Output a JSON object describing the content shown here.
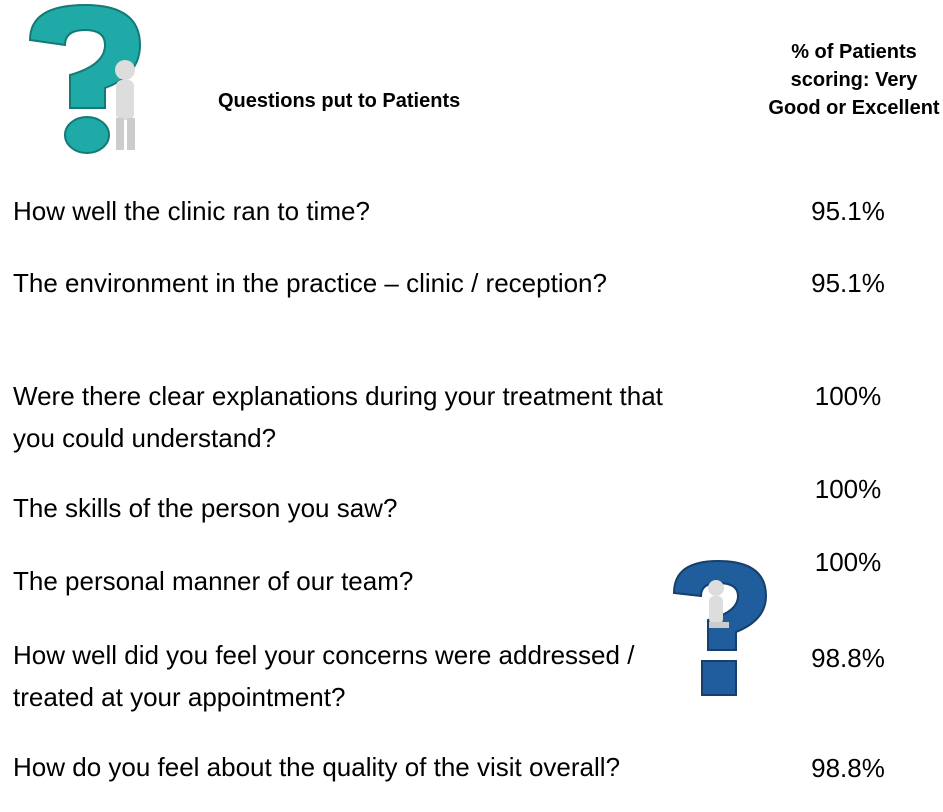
{
  "header": {
    "question_heading": "Questions put to Patients",
    "score_heading": "% of Patients scoring: Very Good or Excellent"
  },
  "rows": [
    {
      "question": "How well the clinic ran to time?",
      "score": "95.1%"
    },
    {
      "question": "The environment in the practice – clinic / reception?",
      "score": "95.1%"
    },
    {
      "question": "Were there clear explanations during your treatment that you could understand?",
      "score": "100%"
    },
    {
      "question": "The skills of the person you saw?",
      "score": "100%"
    },
    {
      "question": "The personal manner of our team?",
      "score": "100%"
    },
    {
      "question": "How well did you feel your concerns were addressed / treated at your appointment?",
      "score": "98.8%"
    },
    {
      "question": "How do you feel about the quality of the visit overall?",
      "score": "98.8%"
    }
  ]
}
